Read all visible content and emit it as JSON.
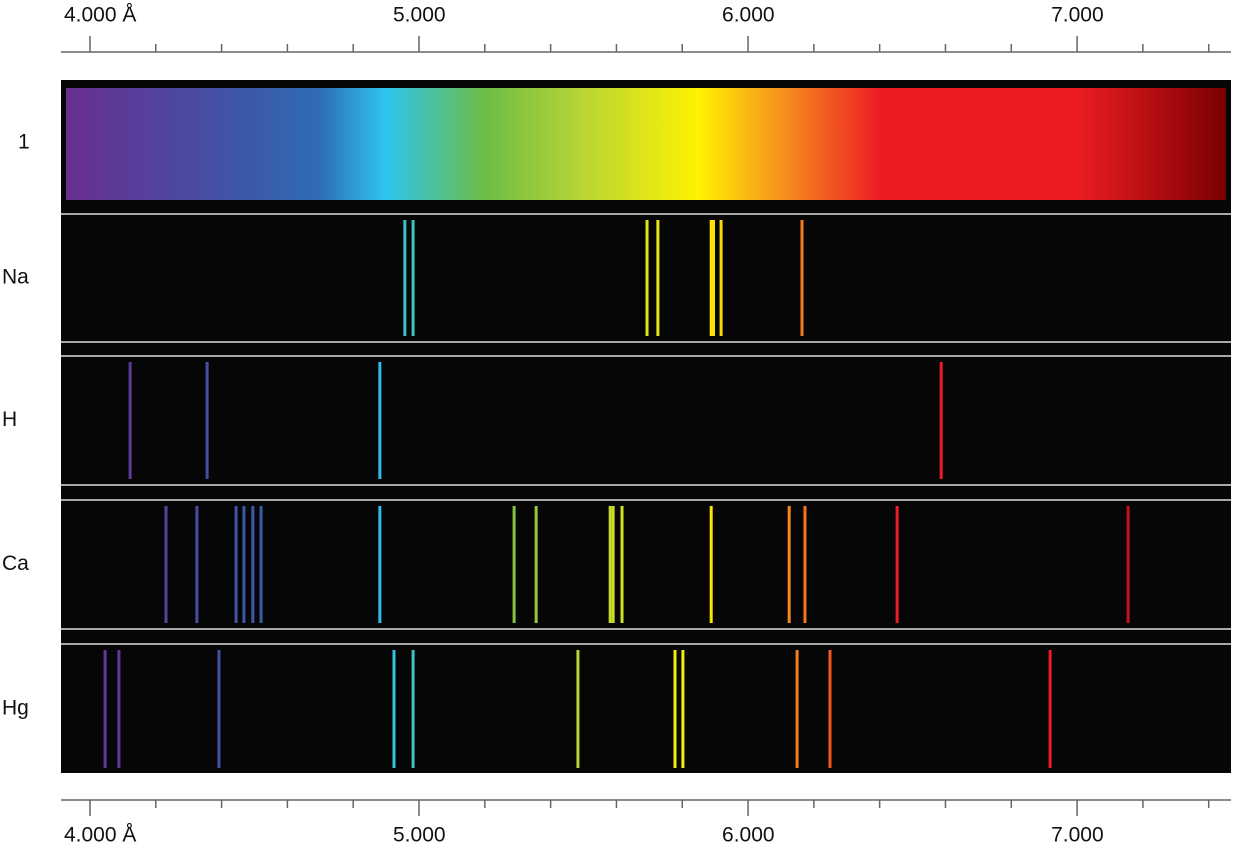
{
  "chart_data": {
    "type": "spectrum",
    "xlim": [
      3915,
      7410
    ],
    "xticks": [
      {
        "value": 4000,
        "label": "4.000 Å"
      },
      {
        "value": 5000,
        "label": "5.000"
      },
      {
        "value": 6000,
        "label": "6.000"
      },
      {
        "value": 7000,
        "label": "7.000"
      }
    ],
    "xminorticks": [
      4200,
      4400,
      4600,
      4800,
      5200,
      5400,
      5600,
      5800,
      6200,
      6400,
      6600,
      6800,
      7200,
      7400
    ],
    "continuum_label": "1",
    "spectrum_colors": [
      {
        "value": 3927,
        "color": "#6a2d91"
      },
      {
        "value": 4500,
        "color": "#3a5aa8"
      },
      {
        "value": 4700,
        "color": "#2f6db5"
      },
      {
        "value": 4900,
        "color": "#2ec5ef"
      },
      {
        "value": 5200,
        "color": "#6cbd45"
      },
      {
        "value": 5500,
        "color": "#b9d535"
      },
      {
        "value": 5850,
        "color": "#fff200"
      },
      {
        "value": 6100,
        "color": "#f6921e"
      },
      {
        "value": 6400,
        "color": "#ed1c24"
      },
      {
        "value": 7000,
        "color": "#ed1c24"
      },
      {
        "value": 7453,
        "color": "#7a0000"
      }
    ],
    "series": [
      {
        "name": "Na",
        "values": [
          4957,
          4982,
          5693,
          5726,
          5888,
          5895,
          5918,
          6164
        ]
      },
      {
        "name": "H",
        "values": [
          4122,
          4356,
          4881,
          6587
        ]
      },
      {
        "name": "Ca",
        "values": [
          4231,
          4325,
          4444,
          4468,
          4495,
          4520,
          4881,
          5289,
          5356,
          5581,
          5590,
          5617,
          5888,
          6125,
          6173,
          6453,
          7155
        ]
      },
      {
        "name": "Hg",
        "values": [
          4046,
          4088,
          4392,
          4924,
          4982,
          5483,
          5778,
          5802,
          6149,
          6249,
          6918
        ]
      }
    ]
  }
}
